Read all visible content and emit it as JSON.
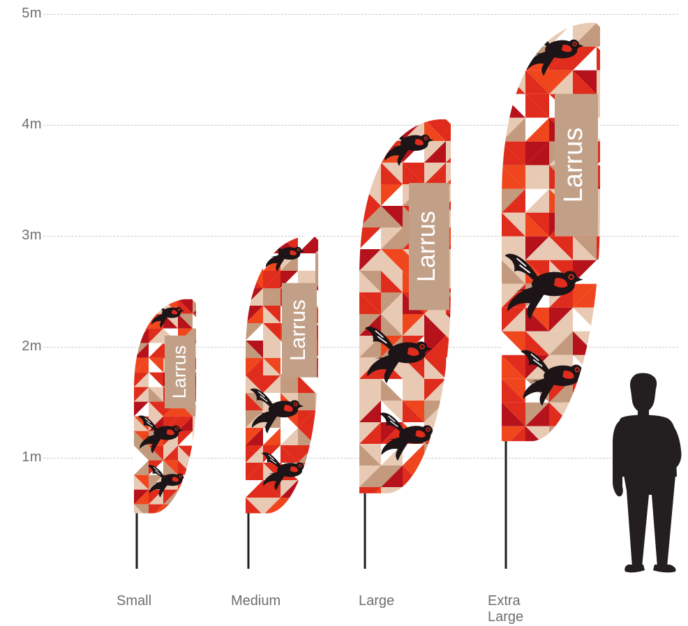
{
  "scale": {
    "unit": "m",
    "ticks": [
      {
        "value": 1,
        "label": "1m"
      },
      {
        "value": 2,
        "label": "2m"
      },
      {
        "value": 3,
        "label": "3m"
      },
      {
        "value": 4,
        "label": "4m"
      },
      {
        "value": 5,
        "label": "5m"
      }
    ]
  },
  "flags": [
    {
      "size_label": "Small",
      "flag_text": "Larrus",
      "top_m": 2.43,
      "bottom_m": 0.5
    },
    {
      "size_label": "Medium",
      "flag_text": "Larrus",
      "top_m": 3.0,
      "bottom_m": 0.5
    },
    {
      "size_label": "Large",
      "flag_text": "Larrus",
      "top_m": 4.05,
      "bottom_m": 0.68
    },
    {
      "size_label": "Extra Large",
      "flag_text": "Larrus",
      "top_m": 4.92,
      "bottom_m": 1.15
    }
  ],
  "colors": {
    "red": "#e02c1c",
    "dark_red": "#b5121b",
    "orange": "#f0461e",
    "tan": "#c39a7d",
    "light_tan": "#e8c9b3",
    "panel": "#c2a088",
    "bird": "#1c1416",
    "pole": "#1d1d1d",
    "silhouette": "#231f20"
  }
}
